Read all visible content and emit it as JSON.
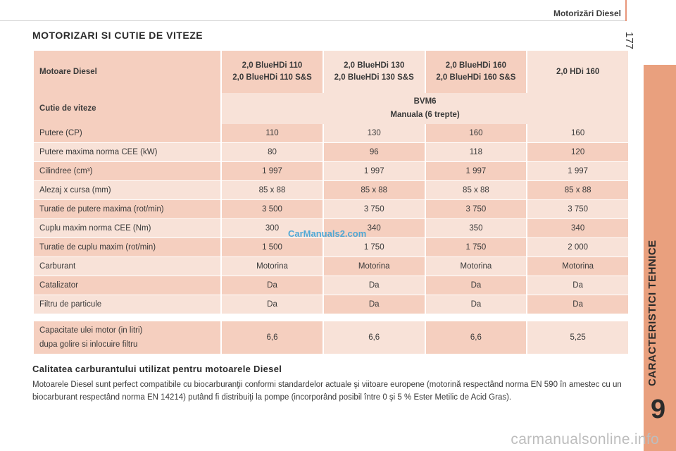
{
  "header": {
    "title": "Motorizări Diesel",
    "page_number": "177"
  },
  "side_tab": {
    "label": "CARACTERISTICI TEHNICE",
    "chapter": "9",
    "color": "#e9a07e"
  },
  "section_title": "MOTORIZARI SI CUTIE DE VITEZE",
  "table": {
    "engine_header": {
      "label": "Motoare Diesel",
      "columns": [
        [
          "2,0 BlueHDi 110",
          "2,0 BlueHDi 110 S&S"
        ],
        [
          "2,0 BlueHDi 130",
          "2,0 BlueHDi 130 S&S"
        ],
        [
          "2,0 BlueHDi 160",
          "2,0 BlueHDi 160 S&S"
        ],
        [
          "2,0 HDi 160"
        ]
      ]
    },
    "gearbox": {
      "label": "Cutie de viteze",
      "line1": "BVM6",
      "line2": "Manuala (6 trepte)"
    },
    "rows": [
      {
        "label": "Putere (CP)",
        "values": [
          "110",
          "130",
          "160",
          "160"
        ]
      },
      {
        "label": "Putere maxima norma CEE (kW)",
        "values": [
          "80",
          "96",
          "118",
          "120"
        ]
      },
      {
        "label": "Cilindree (cm³)",
        "values": [
          "1 997",
          "1 997",
          "1 997",
          "1 997"
        ]
      },
      {
        "label": "Alezaj x cursa (mm)",
        "values": [
          "85 x 88",
          "85 x 88",
          "85 x 88",
          "85 x 88"
        ]
      },
      {
        "label": "Turatie de putere maxima (rot/min)",
        "values": [
          "3 500",
          "3 750",
          "3 750",
          "3 750"
        ]
      },
      {
        "label": "Cuplu maxim norma CEE (Nm)",
        "values": [
          "300",
          "340",
          "350",
          "340"
        ]
      },
      {
        "label": "Turatie de cuplu maxim (rot/min)",
        "values": [
          "1 500",
          "1 750",
          "1 750",
          "2 000"
        ]
      },
      {
        "label": "Carburant",
        "values": [
          "Motorina",
          "Motorina",
          "Motorina",
          "Motorina"
        ]
      },
      {
        "label": "Catalizator",
        "values": [
          "Da",
          "Da",
          "Da",
          "Da"
        ]
      },
      {
        "label": "Filtru de particule",
        "values": [
          "Da",
          "Da",
          "Da",
          "Da"
        ]
      }
    ],
    "oil": {
      "label_line1": "Capacitate ulei motor (in litri)",
      "label_line2": "dupa golire si inlocuire filtru",
      "values": [
        "6,6",
        "6,6",
        "6,6",
        "5,25"
      ]
    }
  },
  "watermark": "CarManuals2.com",
  "subsection": {
    "title": "Calitatea carburantului utilizat pentru motoarele Diesel",
    "text": "Motoarele Diesel sunt perfect compatibile cu biocarburanţii conformi standardelor actuale şi viitoare europene (motorină respectând norma EN 590 în amestec cu un biocarburant respectând norma EN 14214) putând fi distribuiţi la pompe (incorporând posibil între 0 şi 5 % Ester Metilic de Acid Gras)."
  },
  "footer_watermark": "carmanualsonline.info"
}
